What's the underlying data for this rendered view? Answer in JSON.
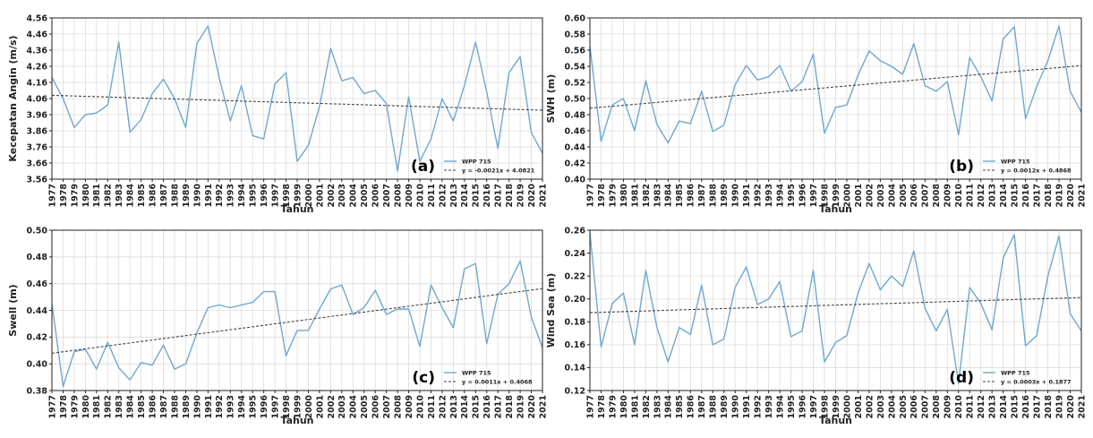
{
  "chart_data": [
    {
      "type": "line",
      "panel_label": "(a)",
      "xlabel": "Tahun",
      "ylabel": "Kecepatan Angin (m/s)",
      "x": [
        1977,
        1978,
        1979,
        1980,
        1981,
        1982,
        1983,
        1984,
        1985,
        1986,
        1987,
        1988,
        1989,
        1990,
        1991,
        1992,
        1993,
        1994,
        1995,
        1996,
        1997,
        1998,
        1999,
        2000,
        2001,
        2002,
        2003,
        2004,
        2005,
        2006,
        2007,
        2008,
        2009,
        2010,
        2011,
        2012,
        2013,
        2014,
        2015,
        2016,
        2017,
        2018,
        2019,
        2020,
        2021
      ],
      "ylim": [
        3.56,
        4.56
      ],
      "yticks": [
        "3.56",
        "3.66",
        "3.76",
        "3.86",
        "3.96",
        "4.06",
        "4.16",
        "4.26",
        "4.36",
        "4.46",
        "4.56"
      ],
      "grid": true,
      "legend_position": "lower-right",
      "series": [
        {
          "name": "WPP 715",
          "color": "#6fa8d0",
          "values": [
            4.19,
            4.06,
            3.88,
            3.96,
            3.97,
            4.02,
            4.41,
            3.85,
            3.93,
            4.09,
            4.18,
            4.06,
            3.88,
            4.4,
            4.51,
            4.19,
            3.92,
            4.14,
            3.83,
            3.81,
            4.15,
            4.22,
            3.67,
            3.77,
            4.01,
            4.37,
            4.17,
            4.19,
            4.09,
            4.11,
            4.03,
            3.61,
            4.07,
            3.67,
            3.81,
            4.06,
            3.92,
            4.14,
            4.41,
            4.1,
            3.75,
            4.22,
            4.32,
            3.85,
            3.72
          ]
        },
        {
          "name": "y = -0.0021x + 4.0821",
          "style": "dashed",
          "color": "#444444",
          "trend": {
            "slope": -0.0021,
            "intercept": 4.0821
          }
        }
      ]
    },
    {
      "type": "line",
      "panel_label": "(b)",
      "xlabel": "Tahun",
      "ylabel": "SWH (m)",
      "x": [
        1977,
        1978,
        1979,
        1980,
        1981,
        1982,
        1983,
        1984,
        1985,
        1986,
        1987,
        1988,
        1989,
        1990,
        1991,
        1992,
        1993,
        1994,
        1995,
        1996,
        1997,
        1998,
        1999,
        2000,
        2001,
        2002,
        2003,
        2004,
        2005,
        2006,
        2007,
        2008,
        2009,
        2010,
        2011,
        2012,
        2013,
        2014,
        2015,
        2016,
        2017,
        2018,
        2019,
        2020,
        2021
      ],
      "ylim": [
        0.4,
        0.6
      ],
      "yticks": [
        "0.40",
        "0.42",
        "0.44",
        "0.46",
        "0.48",
        "0.50",
        "0.52",
        "0.54",
        "0.56",
        "0.58",
        "0.60"
      ],
      "grid": true,
      "legend_position": "lower-right",
      "series": [
        {
          "name": "WPP 715",
          "color": "#6fa8d0",
          "values": [
            0.565,
            0.447,
            0.492,
            0.5,
            0.46,
            0.522,
            0.468,
            0.445,
            0.472,
            0.469,
            0.509,
            0.459,
            0.467,
            0.517,
            0.541,
            0.523,
            0.527,
            0.541,
            0.509,
            0.521,
            0.555,
            0.457,
            0.489,
            0.492,
            0.529,
            0.559,
            0.547,
            0.54,
            0.53,
            0.568,
            0.516,
            0.509,
            0.521,
            0.455,
            0.551,
            0.527,
            0.497,
            0.574,
            0.589,
            0.475,
            0.515,
            0.547,
            0.59,
            0.509,
            0.483
          ]
        },
        {
          "name": "y = 0.0012x + 0.4868",
          "style": "dashed",
          "color": "#444444",
          "trend": {
            "slope": 0.0012,
            "intercept": 0.4868
          }
        }
      ]
    },
    {
      "type": "line",
      "panel_label": "(c)",
      "xlabel": "Tahun",
      "ylabel": "Swell (m)",
      "x": [
        1977,
        1978,
        1979,
        1980,
        1981,
        1982,
        1983,
        1984,
        1985,
        1986,
        1987,
        1988,
        1989,
        1990,
        1991,
        1992,
        1993,
        1994,
        1995,
        1996,
        1997,
        1998,
        1999,
        2000,
        2001,
        2002,
        2003,
        2004,
        2005,
        2006,
        2007,
        2008,
        2009,
        2010,
        2011,
        2012,
        2013,
        2014,
        2015,
        2016,
        2017,
        2018,
        2019,
        2020,
        2021
      ],
      "ylim": [
        0.38,
        0.5
      ],
      "yticks": [
        "0.38",
        "0.40",
        "0.42",
        "0.44",
        "0.46",
        "0.48",
        "0.50"
      ],
      "grid": true,
      "legend_position": "lower-right",
      "series": [
        {
          "name": "WPP 715",
          "color": "#6fa8d0",
          "values": [
            0.445,
            0.383,
            0.409,
            0.411,
            0.396,
            0.416,
            0.397,
            0.388,
            0.401,
            0.399,
            0.414,
            0.396,
            0.4,
            0.423,
            0.442,
            0.444,
            0.442,
            0.444,
            0.446,
            0.454,
            0.454,
            0.406,
            0.425,
            0.425,
            0.441,
            0.456,
            0.459,
            0.437,
            0.442,
            0.455,
            0.437,
            0.441,
            0.441,
            0.413,
            0.459,
            0.442,
            0.427,
            0.471,
            0.475,
            0.415,
            0.452,
            0.46,
            0.477,
            0.435,
            0.412
          ]
        },
        {
          "name": "y = 0.0011x + 0.4068",
          "style": "dashed",
          "color": "#444444",
          "trend": {
            "slope": 0.0011,
            "intercept": 0.4068
          }
        }
      ]
    },
    {
      "type": "line",
      "panel_label": "(d)",
      "xlabel": "Tahun",
      "ylabel": "Wind Sea (m)",
      "x": [
        1977,
        1978,
        1979,
        1980,
        1981,
        1982,
        1983,
        1984,
        1985,
        1986,
        1987,
        1988,
        1989,
        1990,
        1991,
        1992,
        1993,
        1994,
        1995,
        1996,
        1997,
        1998,
        1999,
        2000,
        2001,
        2002,
        2003,
        2004,
        2005,
        2006,
        2007,
        2008,
        2009,
        2010,
        2011,
        2012,
        2013,
        2014,
        2015,
        2016,
        2017,
        2018,
        2019,
        2020,
        2021
      ],
      "ylim": [
        0.12,
        0.26
      ],
      "yticks": [
        "0.12",
        "0.14",
        "0.16",
        "0.18",
        "0.20",
        "0.22",
        "0.24",
        "0.26"
      ],
      "grid": true,
      "legend_position": "lower-right",
      "series": [
        {
          "name": "WPP 715",
          "color": "#6fa8d0",
          "values": [
            0.258,
            0.158,
            0.196,
            0.205,
            0.16,
            0.225,
            0.175,
            0.145,
            0.175,
            0.169,
            0.212,
            0.16,
            0.165,
            0.21,
            0.228,
            0.195,
            0.2,
            0.215,
            0.167,
            0.172,
            0.225,
            0.145,
            0.162,
            0.168,
            0.205,
            0.231,
            0.208,
            0.22,
            0.211,
            0.242,
            0.192,
            0.172,
            0.191,
            0.126,
            0.21,
            0.196,
            0.173,
            0.236,
            0.256,
            0.159,
            0.168,
            0.22,
            0.255,
            0.187,
            0.172
          ]
        },
        {
          "name": "y = 0.0003x + 0.1877",
          "style": "dashed",
          "color": "#444444",
          "trend": {
            "slope": 0.0003,
            "intercept": 0.1877
          }
        }
      ]
    }
  ]
}
